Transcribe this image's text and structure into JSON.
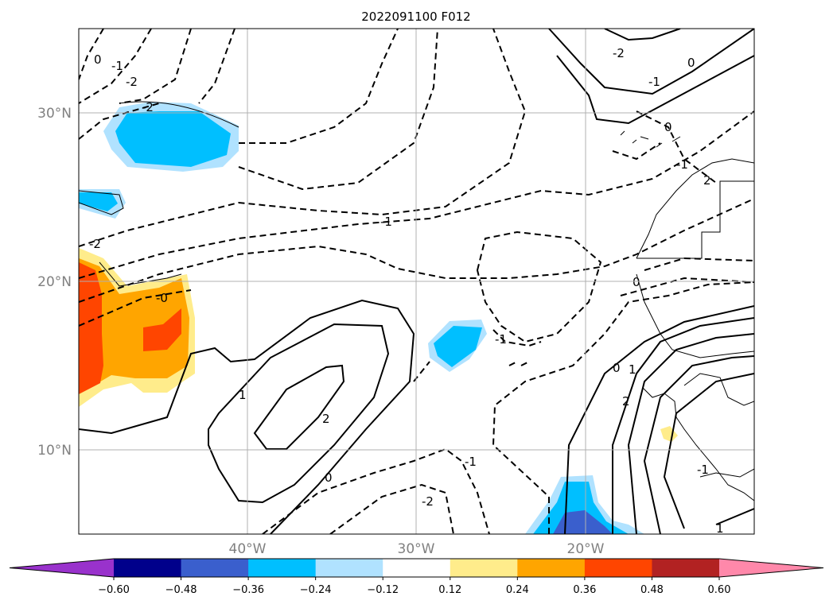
{
  "title": "2022091100 F012",
  "map": {
    "lat_labels": [
      "30°N",
      "20°N",
      "10°N"
    ],
    "lon_labels": [
      "40°W",
      "30°W",
      "20°W"
    ],
    "extent": {
      "lon": [
        -50,
        -10
      ],
      "lat": [
        5,
        35
      ]
    },
    "gridline_color": "#b0b0b0"
  },
  "contour_labels": [
    "0",
    "-1",
    "-2",
    "-2",
    "-1",
    "-2",
    "-0",
    "0",
    "1",
    "2",
    "0",
    "-1",
    "-2",
    "-2",
    "-1",
    "0",
    "-1",
    "0",
    "1",
    "2",
    "2",
    "-1",
    "0",
    "1",
    "-1"
  ],
  "colorbar": {
    "ticks": [
      "−0.60",
      "−0.48",
      "−0.36",
      "−0.24",
      "−0.12",
      "0.12",
      "0.24",
      "0.36",
      "0.48",
      "0.60"
    ],
    "under_color": "#9932cc",
    "over_color": "#ff88aa",
    "colors": [
      "#00008b",
      "#3a5fcd",
      "#00bfff",
      "#b0e2ff",
      "#ffffff",
      "#ffec8b",
      "#ffa500",
      "#ff4500",
      "#b22222"
    ]
  }
}
